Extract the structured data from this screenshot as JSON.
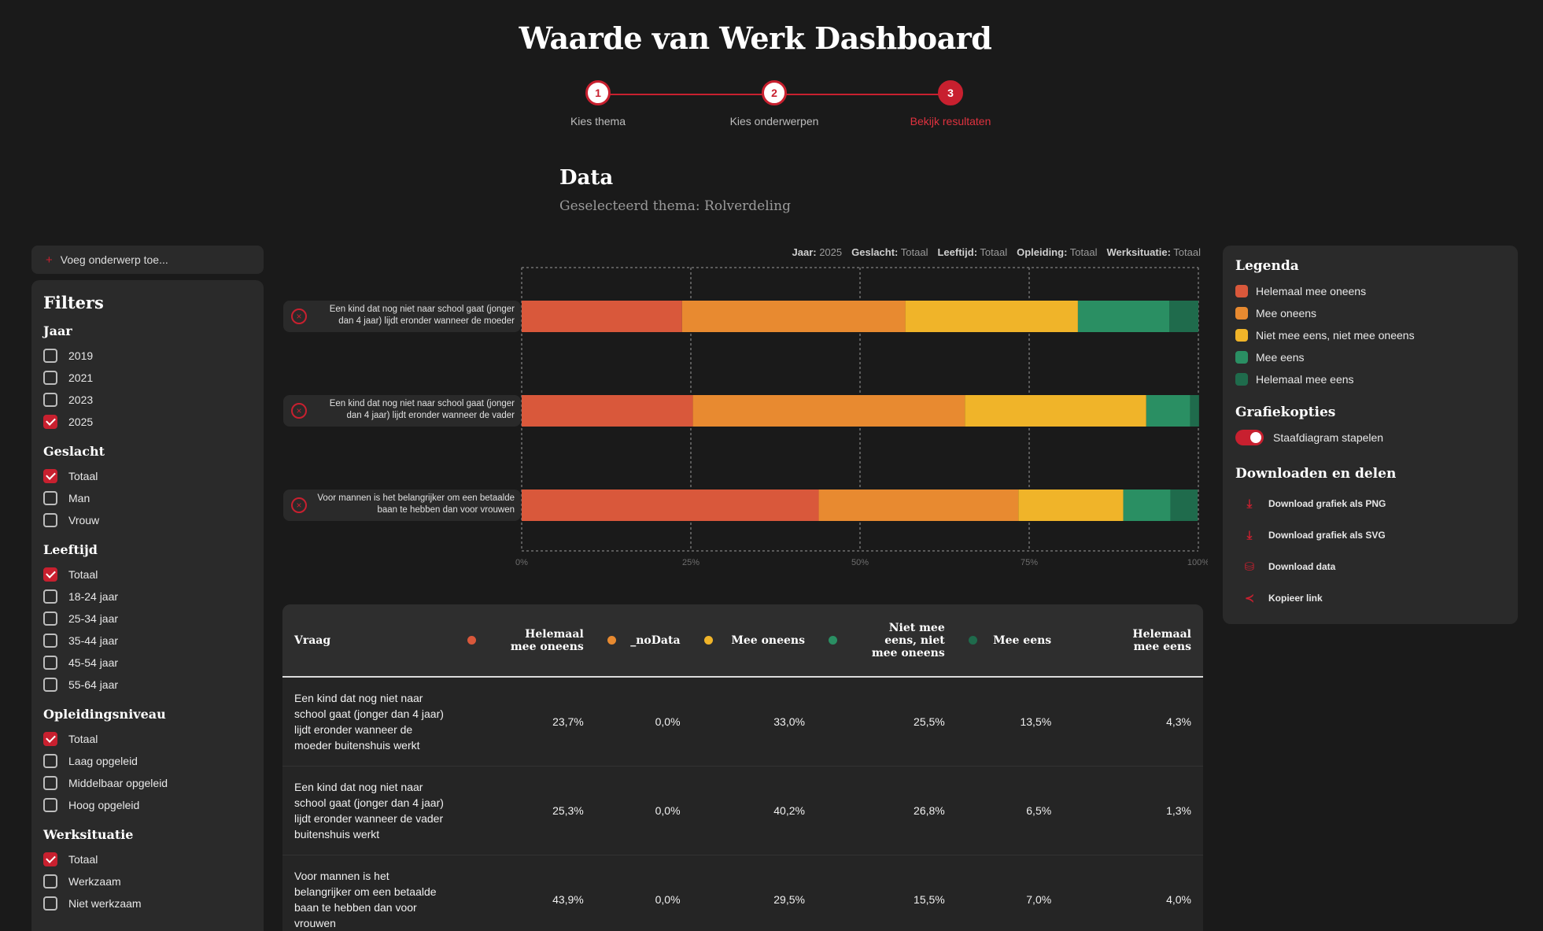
{
  "header": {
    "title": "Waarde van Werk Dashboard"
  },
  "stepper": {
    "steps": [
      {
        "number": "1",
        "label": "Kies thema"
      },
      {
        "number": "2",
        "label": "Kies onderwerpen"
      },
      {
        "number": "3",
        "label": "Bekijk resultaten"
      }
    ],
    "active": 3
  },
  "section": {
    "title": "Data",
    "subtitle": "Geselecteerd thema: Rolverdeling"
  },
  "sidebar": {
    "add_topic_label": "Voeg onderwerp toe...",
    "filters_title": "Filters",
    "groups": [
      {
        "title": "Jaar",
        "options": [
          {
            "label": "2019",
            "checked": false
          },
          {
            "label": "2021",
            "checked": false
          },
          {
            "label": "2023",
            "checked": false
          },
          {
            "label": "2025",
            "checked": true
          }
        ]
      },
      {
        "title": "Geslacht",
        "options": [
          {
            "label": "Totaal",
            "checked": true
          },
          {
            "label": "Man",
            "checked": false
          },
          {
            "label": "Vrouw",
            "checked": false
          }
        ]
      },
      {
        "title": "Leeftijd",
        "options": [
          {
            "label": "Totaal",
            "checked": true
          },
          {
            "label": "18-24 jaar",
            "checked": false
          },
          {
            "label": "25-34 jaar",
            "checked": false
          },
          {
            "label": "35-44 jaar",
            "checked": false
          },
          {
            "label": "45-54 jaar",
            "checked": false
          },
          {
            "label": "55-64 jaar",
            "checked": false
          }
        ]
      },
      {
        "title": "Opleidingsniveau",
        "options": [
          {
            "label": "Totaal",
            "checked": true
          },
          {
            "label": "Laag opgeleid",
            "checked": false
          },
          {
            "label": "Middelbaar opgeleid",
            "checked": false
          },
          {
            "label": "Hoog opgeleid",
            "checked": false
          }
        ]
      },
      {
        "title": "Werksituatie",
        "options": [
          {
            "label": "Totaal",
            "checked": true
          },
          {
            "label": "Werkzaam",
            "checked": false
          },
          {
            "label": "Niet werkzaam",
            "checked": false
          }
        ]
      }
    ]
  },
  "active_filters": [
    {
      "key": "Jaar:",
      "value": "2025"
    },
    {
      "key": "Geslacht:",
      "value": "Totaal"
    },
    {
      "key": "Leeftijd:",
      "value": "Totaal"
    },
    {
      "key": "Opleiding:",
      "value": "Totaal"
    },
    {
      "key": "Werksituatie:",
      "value": "Totaal"
    }
  ],
  "chart_data": {
    "type": "bar",
    "orientation": "horizontal",
    "stacked": true,
    "categories": [
      "Een kind dat nog niet naar school gaat (jonger dan 4 jaar) lijdt eronder wanneer de moeder",
      "Een kind dat nog niet naar school gaat (jonger dan 4 jaar) lijdt eronder wanneer de vader",
      "Voor mannen is het belangrijker om een betaalde baan te hebben dan voor vrouwen"
    ],
    "series": [
      {
        "name": "Helemaal mee oneens",
        "color": "#d9583b",
        "values": [
          23.7,
          25.3,
          43.9
        ]
      },
      {
        "name": "Mee oneens",
        "color": "#e88a30",
        "values": [
          33.0,
          40.2,
          29.5
        ]
      },
      {
        "name": "Niet mee eens, niet mee oneens",
        "color": "#f0b429",
        "values": [
          25.5,
          26.8,
          15.5
        ]
      },
      {
        "name": "Mee eens",
        "color": "#2a8f63",
        "values": [
          13.5,
          6.5,
          7.0
        ]
      },
      {
        "name": "Helemaal mee eens",
        "color": "#1f6b4c",
        "values": [
          4.3,
          1.3,
          4.0
        ]
      }
    ],
    "x_ticks": [
      "0%",
      "25%",
      "50%",
      "75%",
      "100%"
    ],
    "xlim": [
      0,
      100
    ],
    "grid": true
  },
  "legend_panel": {
    "legend_title": "Legenda",
    "items": [
      {
        "label": "Helemaal mee oneens",
        "color": "#d9583b"
      },
      {
        "label": "Mee oneens",
        "color": "#e88a30"
      },
      {
        "label": "Niet mee eens, niet mee oneens",
        "color": "#f0b429"
      },
      {
        "label": "Mee eens",
        "color": "#2a8f63"
      },
      {
        "label": "Helemaal mee eens",
        "color": "#1f6b4c"
      }
    ],
    "options_title": "Grafiekopties",
    "stack_toggle_label": "Staafdiagram stapelen",
    "stack_toggle_on": true,
    "download_title": "Downloaden en delen",
    "downloads": [
      {
        "label": "Download grafiek als PNG",
        "icon": "download-icon"
      },
      {
        "label": "Download grafiek als SVG",
        "icon": "download-icon"
      },
      {
        "label": "Download data",
        "icon": "database-icon"
      },
      {
        "label": "Kopieer link",
        "icon": "share-icon"
      }
    ]
  },
  "table": {
    "headers": [
      {
        "label": "Vraag",
        "color": null
      },
      {
        "label": "Helemaal mee oneens",
        "color": "#d9583b"
      },
      {
        "label": "_noData",
        "color": "#e88a30"
      },
      {
        "label": "Mee oneens",
        "color": "#f0b429"
      },
      {
        "label": "Niet mee eens, niet mee oneens",
        "color": "#2a8f63"
      },
      {
        "label": "Mee eens",
        "color": "#1f6b4c"
      },
      {
        "label": "Helemaal mee eens",
        "color": null
      }
    ],
    "rows": [
      [
        "Een kind dat nog niet naar school gaat (jonger dan 4 jaar) lijdt eronder wanneer de moeder buitenshuis werkt",
        "23,7%",
        "0,0%",
        "33,0%",
        "25,5%",
        "13,5%",
        "4,3%"
      ],
      [
        "Een kind dat nog niet naar school gaat (jonger dan 4 jaar) lijdt eronder wanneer de vader buitenshuis werkt",
        "25,3%",
        "0,0%",
        "40,2%",
        "26,8%",
        "6,5%",
        "1,3%"
      ],
      [
        "Voor mannen is het belangrijker om een betaalde baan te hebben dan voor vrouwen",
        "43,9%",
        "0,0%",
        "29,5%",
        "15,5%",
        "7,0%",
        "4,0%"
      ]
    ]
  }
}
